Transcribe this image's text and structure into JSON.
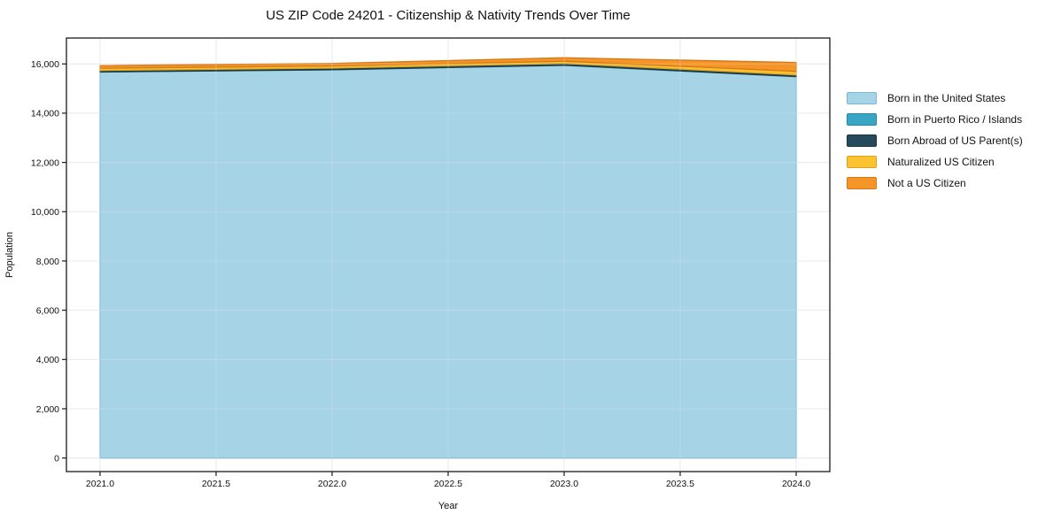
{
  "chart_data": {
    "type": "area",
    "stacked": true,
    "title": "US ZIP Code 24201 - Citizenship & Nativity Trends Over Time",
    "xlabel": "Year",
    "ylabel": "Population",
    "x": [
      2021,
      2022,
      2023,
      2024
    ],
    "series": [
      {
        "name": "Born in the United States",
        "values": [
          15670,
          15760,
          15940,
          15480
        ],
        "fill": "#a6d3e6",
        "edge": "#7ab9d4"
      },
      {
        "name": "Born in Puerto Rico / Islands",
        "values": [
          8,
          8,
          10,
          12
        ],
        "fill": "#38a6c4",
        "edge": "#2b87a1"
      },
      {
        "name": "Born Abroad of US Parent(s)",
        "values": [
          55,
          60,
          70,
          60
        ],
        "fill": "#254a5c",
        "edge": "#1a3544"
      },
      {
        "name": "Naturalized US Citizen",
        "values": [
          90,
          90,
          90,
          145
        ],
        "fill": "#fcc231",
        "edge": "#d9a31f"
      },
      {
        "name": "Not a US Citizen",
        "values": [
          110,
          100,
          140,
          360
        ],
        "fill": "#f69527",
        "edge": "#d57918"
      }
    ],
    "xticks": [
      2021.0,
      2021.5,
      2022.0,
      2022.5,
      2023.0,
      2023.5,
      2024.0
    ],
    "xtick_labels": [
      "2021.0",
      "2021.5",
      "2022.0",
      "2022.5",
      "2023.0",
      "2023.5",
      "2024.0"
    ],
    "yticks": [
      0,
      2000,
      4000,
      6000,
      8000,
      10000,
      12000,
      14000,
      16000
    ],
    "ytick_labels": [
      "0",
      "2,000",
      "4,000",
      "6,000",
      "8,000",
      "10,000",
      "12,000",
      "14,000",
      "16,000"
    ],
    "xlim": [
      2020.855,
      2024.145
    ],
    "ylim": [
      -550,
      17050
    ],
    "grid": true,
    "legend_position": "right",
    "background_color": "#ffffff",
    "grid_color": "#e7e9ee",
    "axis_color": "#1a1a1a",
    "text_color": "#111111"
  }
}
